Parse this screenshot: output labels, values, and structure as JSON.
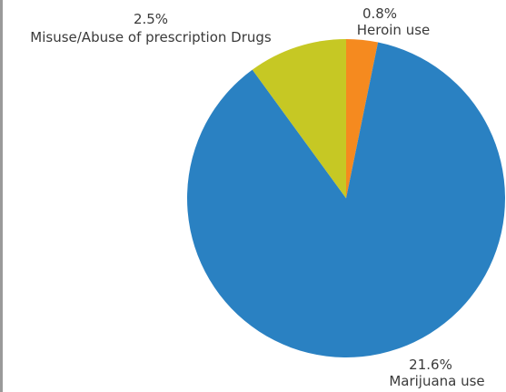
{
  "chart_data": {
    "type": "pie",
    "start_angle_deg": 0,
    "direction": "clockwise",
    "slices": [
      {
        "label": "Heroin use",
        "value_label": "0.8%",
        "value": 0.8,
        "color": "#f58a1f"
      },
      {
        "label": "Marijuana use",
        "value_label": "21.6%",
        "value": 21.6,
        "color": "#2a81c2"
      },
      {
        "label": "Misuse/Abuse of prescription Drugs",
        "value_label": "2.5%",
        "value": 2.5,
        "color": "#c6c824"
      }
    ]
  }
}
